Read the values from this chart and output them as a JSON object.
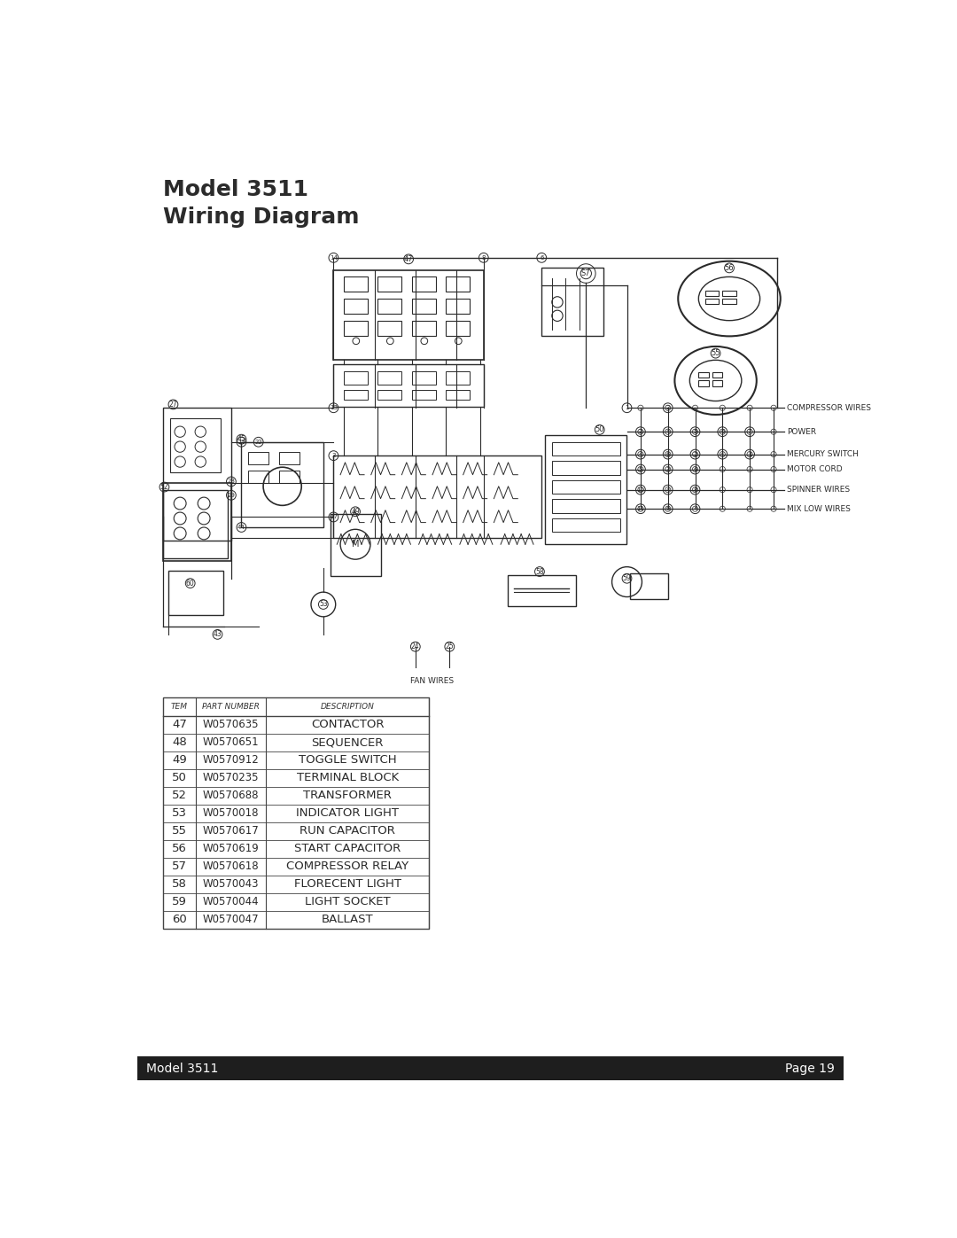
{
  "title_line1": "Model 3511",
  "title_line2": "Wiring Diagram",
  "title_fontsize": 18,
  "title_color": "#2b2b2b",
  "footer_text_left": "Model 3511",
  "footer_text_right": "Page 19",
  "footer_bg": "#1e1e1e",
  "footer_text_color": "#ffffff",
  "footer_fontsize": 10,
  "page_bg": "#ffffff",
  "table_header": [
    "TEM",
    "PART NUMBER",
    "DESCRIPTION"
  ],
  "table_rows": [
    [
      "47",
      "W0570635",
      "CONTACTOR"
    ],
    [
      "48",
      "W0570651",
      "SEQUENCER"
    ],
    [
      "49",
      "W0570912",
      "TOGGLE SWITCH"
    ],
    [
      "50",
      "W0570235",
      "TERMINAL BLOCK"
    ],
    [
      "52",
      "W0570688",
      "TRANSFORMER"
    ],
    [
      "53",
      "W0570018",
      "INDICATOR LIGHT"
    ],
    [
      "55",
      "W0570617",
      "RUN CAPACITOR"
    ],
    [
      "56",
      "W0570619",
      "START CAPACITOR"
    ],
    [
      "57",
      "W0570618",
      "COMPRESSOR RELAY"
    ],
    [
      "58",
      "W0570043",
      "FLORECENT LIGHT"
    ],
    [
      "59",
      "W0570044",
      "LIGHT SOCKET"
    ],
    [
      "60",
      "W0570047",
      "BALLAST"
    ]
  ],
  "wire_labels_right": [
    "COMPRESSOR WIRES",
    "POWER",
    "MERCURY SWITCH",
    "MOTOR CORD",
    "SPINNER WIRES",
    "MIX LOW WIRES"
  ]
}
